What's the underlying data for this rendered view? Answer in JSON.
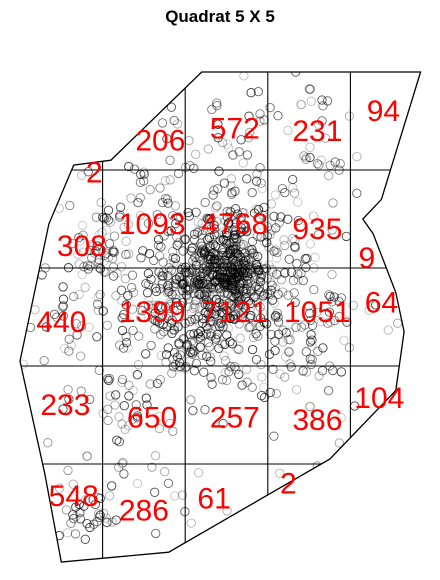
{
  "chart_data": {
    "type": "scatter",
    "title": "Quadrat 5 X 5",
    "point_symbol": "open-circle",
    "point_color": "#000000",
    "window_color": "#000000",
    "grid_color": "#000000",
    "count_color": "#ff0000",
    "x_breaks": [
      0,
      0.2,
      0.4,
      0.6,
      0.8,
      1.0
    ],
    "y_breaks": [
      0,
      0.2,
      0.4,
      0.6,
      0.8,
      1.0
    ],
    "window_polygon": [
      [
        0.44,
        1.0
      ],
      [
        0.97,
        1.0
      ],
      [
        0.875,
        0.74
      ],
      [
        0.83,
        0.7
      ],
      [
        0.855,
        0.67
      ],
      [
        0.91,
        0.55
      ],
      [
        0.93,
        0.47
      ],
      [
        0.91,
        0.35
      ],
      [
        0.75,
        0.21
      ],
      [
        0.36,
        0.02
      ],
      [
        0.1,
        0.0
      ],
      [
        0.06,
        0.18
      ],
      [
        0.0,
        0.41
      ],
      [
        0.07,
        0.69
      ],
      [
        0.13,
        0.81
      ],
      [
        0.22,
        0.82
      ]
    ],
    "counts": [
      {
        "label": "94",
        "x": 0.88,
        "y": 0.92
      },
      {
        "label": "572",
        "x": 0.52,
        "y": 0.885
      },
      {
        "label": "231",
        "x": 0.72,
        "y": 0.88
      },
      {
        "label": "206",
        "x": 0.34,
        "y": 0.86
      },
      {
        "label": "2",
        "x": 0.18,
        "y": 0.795
      },
      {
        "label": "1093",
        "x": 0.32,
        "y": 0.69
      },
      {
        "label": "4768",
        "x": 0.52,
        "y": 0.69
      },
      {
        "label": "935",
        "x": 0.72,
        "y": 0.68
      },
      {
        "label": "308",
        "x": 0.15,
        "y": 0.645
      },
      {
        "label": "9",
        "x": 0.84,
        "y": 0.62
      },
      {
        "label": "64",
        "x": 0.875,
        "y": 0.53
      },
      {
        "label": "1399",
        "x": 0.32,
        "y": 0.51
      },
      {
        "label": "7121",
        "x": 0.52,
        "y": 0.51
      },
      {
        "label": "1051",
        "x": 0.72,
        "y": 0.51
      },
      {
        "label": "440",
        "x": 0.1,
        "y": 0.49
      },
      {
        "label": "104",
        "x": 0.87,
        "y": 0.335
      },
      {
        "label": "233",
        "x": 0.11,
        "y": 0.32
      },
      {
        "label": "650",
        "x": 0.32,
        "y": 0.295
      },
      {
        "label": "257",
        "x": 0.52,
        "y": 0.295
      },
      {
        "label": "386",
        "x": 0.72,
        "y": 0.29
      },
      {
        "label": "2",
        "x": 0.65,
        "y": 0.16
      },
      {
        "label": "548",
        "x": 0.13,
        "y": 0.135
      },
      {
        "label": "286",
        "x": 0.3,
        "y": 0.105
      },
      {
        "label": "61",
        "x": 0.47,
        "y": 0.13
      }
    ],
    "point_clusters": [
      {
        "x": 0.5,
        "y": 0.6,
        "spread": 0.05,
        "n": 380
      },
      {
        "x": 0.45,
        "y": 0.52,
        "spread": 0.06,
        "n": 140
      },
      {
        "x": 0.55,
        "y": 0.55,
        "spread": 0.08,
        "n": 160
      },
      {
        "x": 0.38,
        "y": 0.56,
        "spread": 0.05,
        "n": 60
      },
      {
        "x": 0.2,
        "y": 0.63,
        "spread": 0.04,
        "n": 50
      },
      {
        "x": 0.27,
        "y": 0.52,
        "spread": 0.05,
        "n": 40
      },
      {
        "x": 0.4,
        "y": 0.44,
        "spread": 0.03,
        "n": 35
      },
      {
        "x": 0.16,
        "y": 0.1,
        "spread": 0.03,
        "n": 30
      },
      {
        "x": 0.12,
        "y": 0.5,
        "spread": 0.05,
        "n": 25
      },
      {
        "x": 0.5,
        "y": 0.8,
        "spread": 0.06,
        "n": 30
      },
      {
        "x": 0.32,
        "y": 0.75,
        "spread": 0.05,
        "n": 25
      },
      {
        "x": 0.62,
        "y": 0.7,
        "spread": 0.05,
        "n": 30
      },
      {
        "x": 0.65,
        "y": 0.45,
        "spread": 0.05,
        "n": 25
      },
      {
        "x": 0.75,
        "y": 0.52,
        "spread": 0.04,
        "n": 20
      },
      {
        "x": 0.26,
        "y": 0.33,
        "spread": 0.05,
        "n": 20
      },
      {
        "x": 0.72,
        "y": 0.85,
        "spread": 0.05,
        "n": 10
      },
      {
        "x": 0.5,
        "y": 0.9,
        "spread": 0.05,
        "n": 10
      },
      {
        "x": 0.3,
        "y": 0.2,
        "spread": 0.05,
        "n": 10
      }
    ],
    "background_points": 240
  }
}
